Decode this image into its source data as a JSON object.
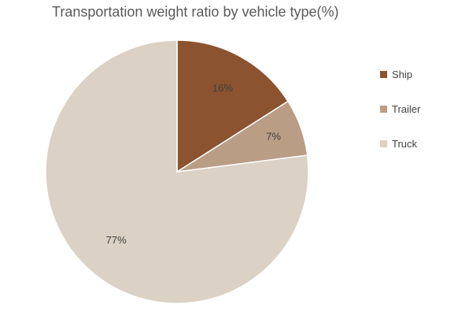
{
  "chart_data": {
    "type": "pie",
    "title": "Transportation weight ratio by vehicle type(%)",
    "legend_position": "right",
    "slices": [
      {
        "label": "Ship",
        "value": 16,
        "display": "16%",
        "color": "#8B5330"
      },
      {
        "label": "Trailer",
        "value": 7,
        "display": "7%",
        "color": "#BA9D85"
      },
      {
        "label": "Truck",
        "value": 77,
        "display": "77%",
        "color": "#DBD1C4"
      }
    ]
  }
}
